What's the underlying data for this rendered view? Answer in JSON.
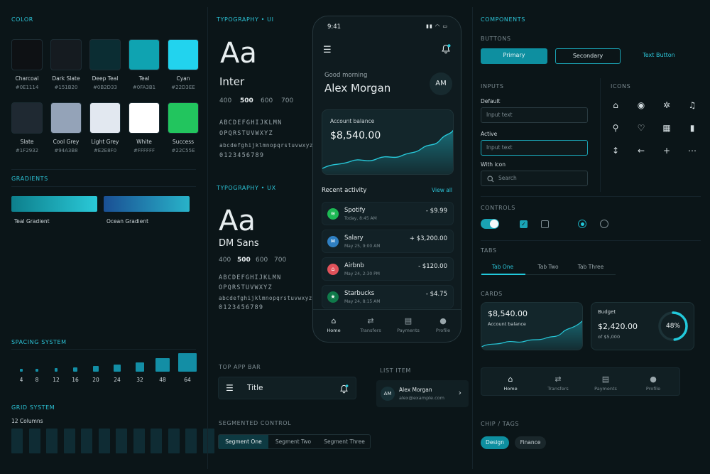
{
  "color": {
    "title": "COLOR",
    "swatches": [
      {
        "name": "Charcoal",
        "hex": "#0E1114"
      },
      {
        "name": "Dark Slate",
        "hex": "#151B20"
      },
      {
        "name": "Deep Teal",
        "hex": "#0B2D33"
      },
      {
        "name": "Teal",
        "hex": "#0FA3B1"
      },
      {
        "name": "Cyan",
        "hex": "#22D3EE"
      },
      {
        "name": "Slate",
        "hex": "#1F2932"
      },
      {
        "name": "Cool Grey",
        "hex": "#94A3B8"
      },
      {
        "name": "Light Grey",
        "hex": "#E2E8F0"
      },
      {
        "name": "White",
        "hex": "#FFFFFF"
      },
      {
        "name": "Success",
        "hex": "#22C55E"
      }
    ]
  },
  "gradients": {
    "title": "GRADIENTS",
    "items": [
      {
        "name": "Teal Gradient",
        "from": "#0d7f8c",
        "to": "#2ac9d8"
      },
      {
        "name": "Ocean Gradient",
        "from": "#1a4f94",
        "to": "#28b3c9"
      }
    ]
  },
  "spacing": {
    "title": "SPACING SYSTEM",
    "values": [
      4,
      8,
      12,
      16,
      20,
      24,
      32,
      48,
      64
    ]
  },
  "grid": {
    "title": "GRID SYSTEM",
    "label": "12 Columns",
    "columns": 12
  },
  "typo_ui": {
    "title": "TYPOGRAPHY • UI",
    "sample": "Aa",
    "font": "Inter",
    "weights": [
      "400",
      "500",
      "600",
      "700"
    ],
    "glyph1": "ABCDEFGHIJKLMN",
    "glyph2": "OPQRSTUVWXYZ",
    "glyph3": "abcdefghijklmnopqrstuvwxyz",
    "glyph4": "0123456789"
  },
  "typo_ux": {
    "title": "TYPOGRAPHY • UX",
    "sample": "Aa",
    "font": "DM Sans",
    "weights": [
      "400",
      "500",
      "600",
      "700"
    ],
    "glyph1": "ABCDEFGHIJKLMN",
    "glyph2": "OPQRSTUVWXYZ",
    "glyph3": "abcdefghijklmnopqrstuvwxyz",
    "glyph4": "0123456789"
  },
  "phone": {
    "time": "9:41",
    "greeting": "Good morning",
    "user": "Alex Morgan",
    "initials": "AM",
    "balance_label": "Account balance",
    "balance": "$8,540.00",
    "recent": "Recent activity",
    "view_all": "View all",
    "activity": [
      {
        "name": "Spotify",
        "date": "Today, 8:45 AM",
        "amount": "- $9.99",
        "color": "#1db954",
        "icon": "spotify-icon"
      },
      {
        "name": "Salary",
        "date": "May 25, 9:00 AM",
        "amount": "+ $3,200.00",
        "color": "#2f7fc1",
        "icon": "salary-icon"
      },
      {
        "name": "Airbnb",
        "date": "May 24, 2:30 PM",
        "amount": "- $120.00",
        "color": "#e0525a",
        "icon": "airbnb-icon"
      },
      {
        "name": "Starbucks",
        "date": "May 24, 8:15 AM",
        "amount": "- $4.75",
        "color": "#0f7a4a",
        "icon": "starbucks-icon"
      }
    ],
    "nav": [
      "Home",
      "Transfers",
      "Payments",
      "Profile"
    ]
  },
  "top_app_bar": {
    "title": "TOP APP BAR",
    "label": "Title"
  },
  "list_item": {
    "title": "LIST ITEM",
    "name": "Alex Morgan",
    "email": "alex@example.com",
    "initials": "AM"
  },
  "segmented": {
    "title": "SEGMENTED CONTROL",
    "segments": [
      "Segment One",
      "Segment Two",
      "Segment Three"
    ]
  },
  "components": {
    "title": "COMPONENTS",
    "buttons_title": "BUTTONS",
    "primary": "Primary",
    "secondary": "Secondary",
    "text_button": "Text Button",
    "inputs_title": "INPUTS",
    "default_label": "Default",
    "default_ph": "Input text",
    "active_label": "Active",
    "active_ph": "Input text",
    "withicon_label": "With icon",
    "search_ph": "Search",
    "icons_title": "ICONS",
    "controls_title": "CONTROLS",
    "tabs_title": "TABS",
    "tabs": [
      "Tab One",
      "Tab Two",
      "Tab Three"
    ],
    "cards_title": "CARDS",
    "card1_value": "$8,540.00",
    "card1_label": "Account balance",
    "budget_label": "Budget",
    "budget_value": "$2,420.00",
    "budget_of": "of $5,000",
    "budget_pct": "48%",
    "budget_fraction": 0.48,
    "nav": [
      "Home",
      "Transfers",
      "Payments",
      "Profile"
    ],
    "chips_title": "CHIP / TAGS",
    "chips": [
      "Design",
      "Finance"
    ]
  }
}
